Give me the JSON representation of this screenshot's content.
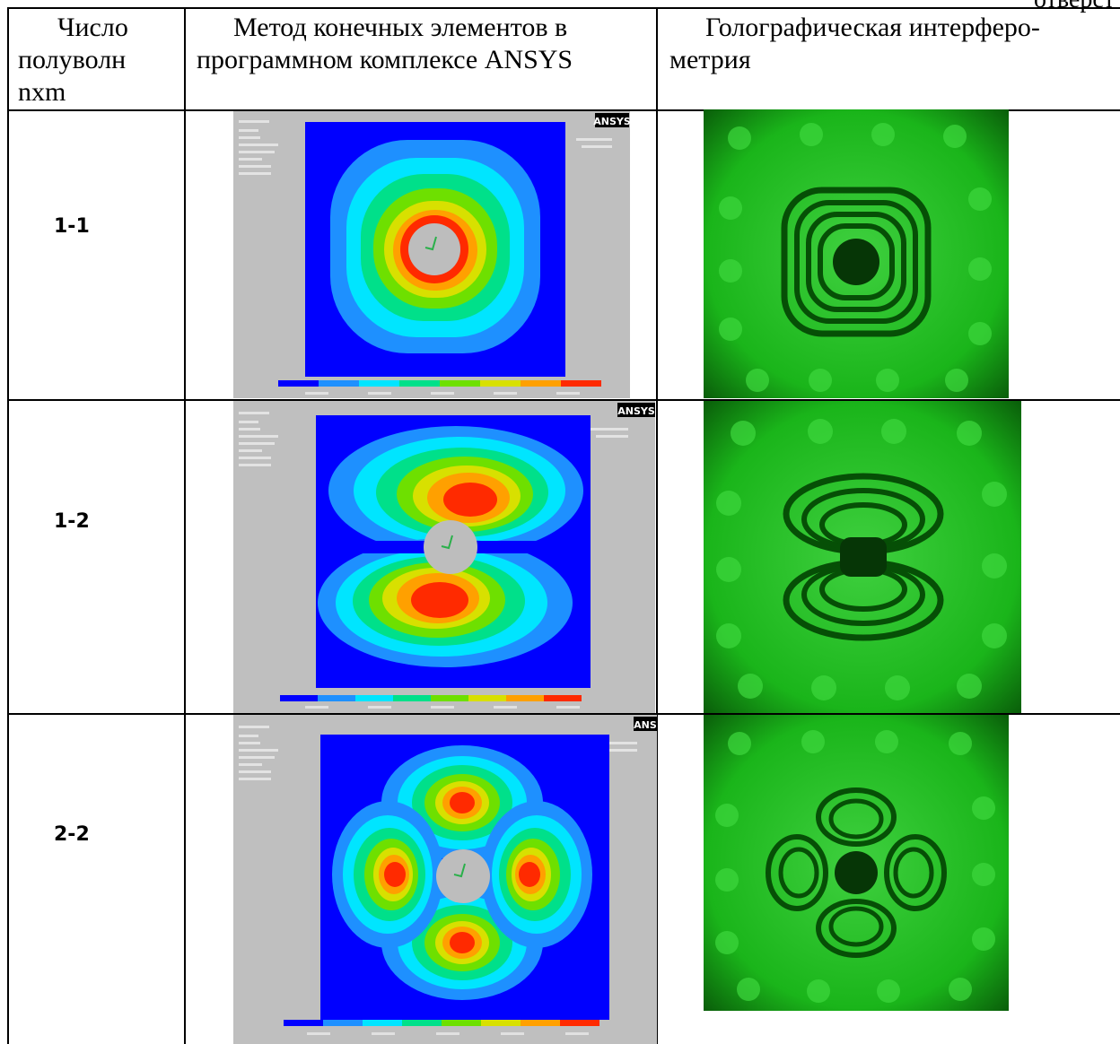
{
  "corner_text": "отверст",
  "header": {
    "col1_line1": "Число",
    "col1_line2": "полуволн",
    "col1_line3": "nxm",
    "col2_line1": "Метод конечных элементов в",
    "col2_line2": "программном комплексе ANSYS",
    "col3_line1": "Голографическая интерферо-",
    "col3_line2": "метрия"
  },
  "rows": [
    {
      "mode": "1-1",
      "ansys_logo": "ANSYS"
    },
    {
      "mode": "1-2",
      "ansys_logo": "ANSYS"
    },
    {
      "mode": "2-2",
      "ansys_logo": "ANS"
    }
  ],
  "colors": {
    "fem_levels": [
      "#0000ff",
      "#1e90ff",
      "#00e5ff",
      "#00e08a",
      "#6ee000",
      "#d8e000",
      "#ffa000",
      "#ff2a00"
    ],
    "hole": "#bdbdbd",
    "panel_bg": "#bfbfbf",
    "holo_bg": "#1ab51a",
    "holo_fringe": "#064f06"
  },
  "icons": {
    "fem_image": "ansys-contour-plot",
    "holo_image": "holographic-interferogram"
  }
}
